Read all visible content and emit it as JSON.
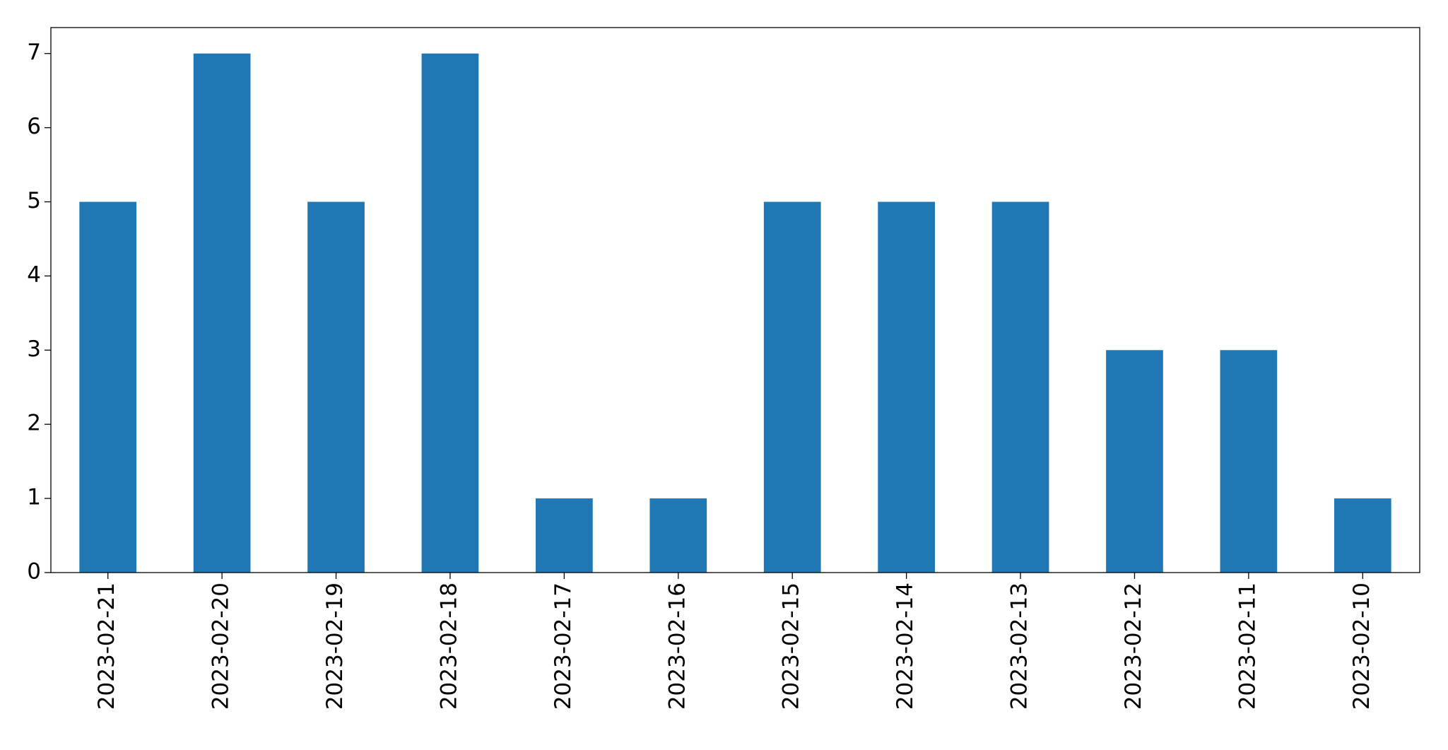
{
  "chart_data": {
    "type": "bar",
    "categories": [
      "2023-02-21",
      "2023-02-20",
      "2023-02-19",
      "2023-02-18",
      "2023-02-17",
      "2023-02-16",
      "2023-02-15",
      "2023-02-14",
      "2023-02-13",
      "2023-02-12",
      "2023-02-11",
      "2023-02-10"
    ],
    "values": [
      5,
      7,
      5,
      7,
      1,
      1,
      5,
      5,
      5,
      3,
      3,
      1
    ],
    "color": "#1f77b4",
    "ylim": [
      0,
      7.35
    ],
    "yticks": [
      0,
      1,
      2,
      3,
      4,
      5,
      6,
      7
    ],
    "grid": false
  }
}
